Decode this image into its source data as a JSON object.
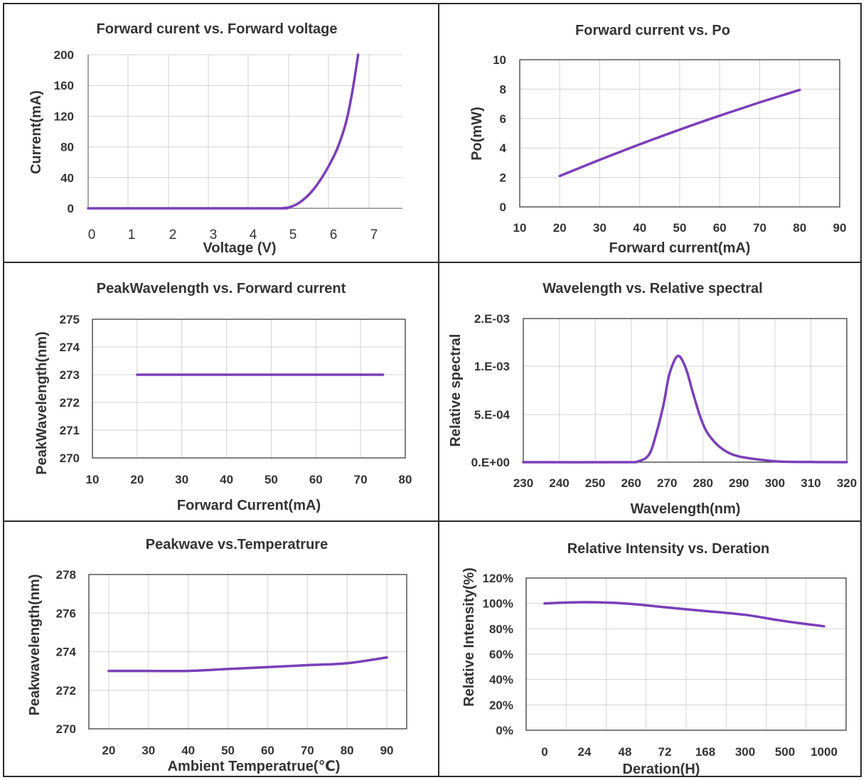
{
  "chart_data": [
    {
      "type": "line",
      "title": "Forward curent vs. Forward voltage",
      "xlabel": "Voltage  (V)",
      "ylabel": "Current(mA)",
      "xlim": [
        0,
        7.8
      ],
      "ylim": [
        0,
        200
      ],
      "x_ticks": [
        "0",
        "1",
        "2",
        "3",
        "4",
        "5",
        "6",
        "7"
      ],
      "y_ticks": [
        "0",
        "40",
        "80",
        "120",
        "160",
        "200"
      ],
      "grid": true,
      "series": [
        {
          "color": "#7a3fb8",
          "points": [
            [
              0,
              0
            ],
            [
              4.5,
              0
            ],
            [
              4.85,
              0.5
            ],
            [
              5.0,
              1.5
            ],
            [
              5.2,
              6
            ],
            [
              5.4,
              14
            ],
            [
              5.6,
              25
            ],
            [
              5.8,
              40
            ],
            [
              6.0,
              58
            ],
            [
              6.2,
              80
            ],
            [
              6.4,
              112
            ],
            [
              6.55,
              150
            ],
            [
              6.7,
              200
            ]
          ]
        }
      ]
    },
    {
      "type": "line",
      "title": "Forward current vs. Po",
      "xlabel": "Forward current(mA)",
      "ylabel": "Po(mW)",
      "xlim": [
        10,
        90
      ],
      "ylim": [
        0,
        10
      ],
      "x_ticks": [
        "10",
        "20",
        "30",
        "40",
        "50",
        "60",
        "70",
        "80",
        "90"
      ],
      "y_ticks": [
        "0",
        "2",
        "4",
        "6",
        "8",
        "10"
      ],
      "grid": true,
      "series": [
        {
          "color": "#7a3fb8",
          "points": [
            [
              20,
              2.1
            ],
            [
              30,
              3.2
            ],
            [
              40,
              4.25
            ],
            [
              50,
              5.25
            ],
            [
              60,
              6.2
            ],
            [
              70,
              7.1
            ],
            [
              80,
              7.95
            ]
          ]
        }
      ]
    },
    {
      "type": "line",
      "title": "PeakWavelength vs. Forward current",
      "xlabel": "Forward Current(mA)",
      "ylabel": "PeakWavelength(nm)",
      "xlim": [
        10,
        80
      ],
      "ylim": [
        270,
        275
      ],
      "x_ticks": [
        "10",
        "20",
        "30",
        "40",
        "50",
        "60",
        "70",
        "80"
      ],
      "y_ticks": [
        "270",
        "271",
        "272",
        "273",
        "274",
        "275"
      ],
      "grid": true,
      "series": [
        {
          "color": "#7a3fb8",
          "points": [
            [
              20,
              273
            ],
            [
              30,
              273
            ],
            [
              40,
              273
            ],
            [
              50,
              273
            ],
            [
              60,
              273
            ],
            [
              70,
              273
            ],
            [
              75,
              273
            ]
          ]
        }
      ]
    },
    {
      "type": "line",
      "title": "Wavelength vs. Relative spectral",
      "xlabel": "Wavelength(nm)",
      "ylabel": "Relative spectral",
      "xlim": [
        230,
        320
      ],
      "ylim": [
        0,
        0.0015
      ],
      "x_ticks": [
        "230",
        "240",
        "250",
        "260",
        "270",
        "280",
        "290",
        "300",
        "310",
        "320"
      ],
      "y_ticks": [
        "0.E+00",
        "5.E-04",
        "1.E-03",
        "2.E-03"
      ],
      "grid": true,
      "series": [
        {
          "color": "#7a3fb8",
          "points": [
            [
              230,
              0
            ],
            [
              258,
              0
            ],
            [
              262,
              1e-05
            ],
            [
              265,
              8e-05
            ],
            [
              267,
              0.0003
            ],
            [
              269,
              0.0006
            ],
            [
              270.5,
              0.0009
            ],
            [
              272,
              0.00106
            ],
            [
              273,
              0.00111
            ],
            [
              274,
              0.00108
            ],
            [
              275.5,
              0.00095
            ],
            [
              277,
              0.00075
            ],
            [
              279,
              0.0005
            ],
            [
              281,
              0.00032
            ],
            [
              284,
              0.00018
            ],
            [
              287,
              0.0001
            ],
            [
              290,
              6e-05
            ],
            [
              295,
              3e-05
            ],
            [
              300,
              1e-05
            ],
            [
              305,
              3e-06
            ],
            [
              320,
              0
            ]
          ]
        }
      ]
    },
    {
      "type": "line",
      "title": "Peakwave vs.Temperatrure",
      "xlabel": "Ambient Temperatrue(℃)",
      "ylabel": "Peakwavelength(nm)",
      "xlim": [
        15,
        95
      ],
      "ylim": [
        270,
        278
      ],
      "x_ticks": [
        "20",
        "30",
        "40",
        "50",
        "60",
        "70",
        "80",
        "90"
      ],
      "y_ticks": [
        "270",
        "272",
        "274",
        "276",
        "278"
      ],
      "grid": true,
      "series": [
        {
          "color": "#7a3fb8",
          "points": [
            [
              20,
              273
            ],
            [
              30,
              273
            ],
            [
              40,
              273
            ],
            [
              50,
              273.1
            ],
            [
              60,
              273.2
            ],
            [
              70,
              273.3
            ],
            [
              80,
              273.4
            ],
            [
              90,
              273.7
            ]
          ]
        }
      ]
    },
    {
      "type": "line",
      "title": "Relative Intensity  vs. Deration",
      "xlabel": "Deration(H)",
      "ylabel": "Relative Intensity(%)",
      "categories": [
        "0",
        "24",
        "48",
        "72",
        "168",
        "300",
        "500",
        "1000"
      ],
      "ylim": [
        0,
        120
      ],
      "y_ticks": [
        "0%",
        "20%",
        "40%",
        "60%",
        "80%",
        "100%",
        "120%"
      ],
      "grid": true,
      "series": [
        {
          "color": "#7a3fb8",
          "values": [
            100,
            101,
            100,
            97,
            94,
            91,
            86,
            82
          ]
        }
      ]
    }
  ]
}
